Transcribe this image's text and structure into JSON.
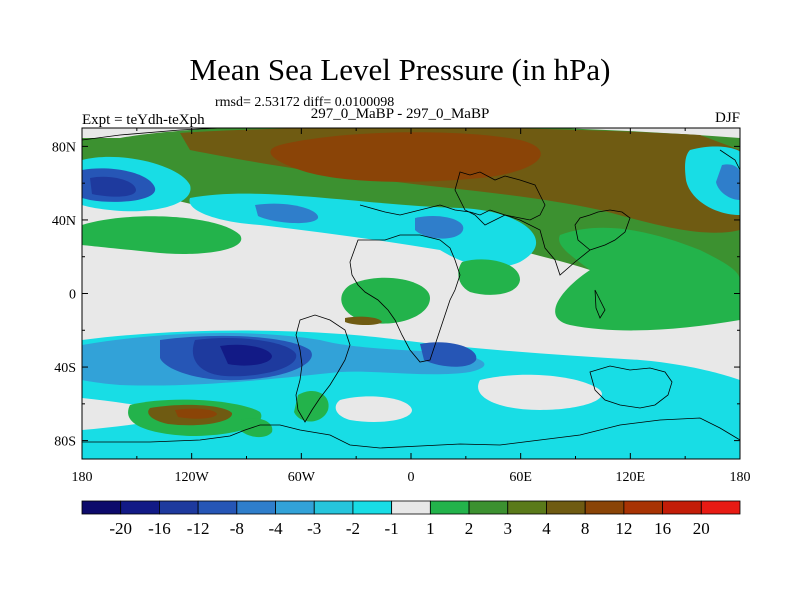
{
  "chart_data": {
    "type": "heatmap",
    "title": "Mean Sea Level Pressure (in hPa)",
    "stats_label": "rmsd= 2.53172 diff= 0.0100098",
    "left_label": "Expt = teYdh-teXph",
    "center_label": "297_0_MaBP - 297_0_MaBP",
    "right_label": "DJF",
    "x_ticks": [
      "180",
      "120W",
      "60W",
      "0",
      "60E",
      "120E",
      "180"
    ],
    "y_ticks": [
      "80N",
      "40N",
      "0",
      "40S",
      "80S"
    ],
    "xlim": [
      -180,
      180
    ],
    "ylim": [
      -90,
      90
    ],
    "colorbar_labels": [
      "-20",
      "-16",
      "-12",
      "-8",
      "-4",
      "-3",
      "-2",
      "-1",
      "1",
      "2",
      "3",
      "4",
      "8",
      "12",
      "16",
      "20"
    ],
    "colorbar_colors": [
      "#0d0a6b",
      "#121a86",
      "#1e3a9e",
      "#2656b6",
      "#2f7ecb",
      "#32a2d8",
      "#26c5dc",
      "#18dde5",
      "#e8e8e8",
      "#23b34b",
      "#3c9130",
      "#5a7a1a",
      "#6f5b12",
      "#8a4407",
      "#a83304",
      "#c31d08",
      "#e81b14"
    ],
    "fill_regions": [
      {
        "name": "arctic-high",
        "level": 12
      },
      {
        "name": "nw-pacific-low",
        "level": -8
      },
      {
        "name": "ne-europe-low",
        "level": -4
      },
      {
        "name": "southern-ocean-low",
        "level": -12
      },
      {
        "name": "south-atlantic-high",
        "level": 2
      },
      {
        "name": "indian-ocean-high",
        "level": 3
      },
      {
        "name": "south-pacific-high",
        "level": 8
      }
    ]
  }
}
